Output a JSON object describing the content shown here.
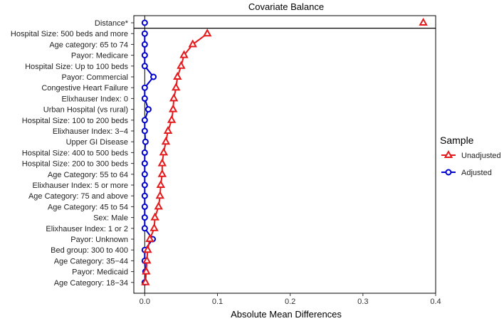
{
  "chart_data": {
    "type": "line",
    "title": "Covariate Balance",
    "xlabel": "Absolute Mean Differences",
    "ylabel": "",
    "xlim": [
      -0.015,
      0.4
    ],
    "xticks": [
      0.0,
      0.1,
      0.2,
      0.3,
      0.4
    ],
    "xtick_labels": [
      "0.0",
      "0.1",
      "0.2",
      "0.3",
      "0.4"
    ],
    "reference_line_x": 0,
    "grid": false,
    "legend_position": "right",
    "legend_title": "Sample",
    "categories": [
      "Distance*",
      "Hospital Size: 500 beds and more",
      "Age category: 65 to 74",
      "Payor: Medicare",
      "Hospital Size: Up to 100 beds",
      "Payor: Commercial",
      "Congestive Heart Failure",
      "Elixhauser Index: 0",
      "Urban Hospital (vs rural)",
      "Hospital Size: 100 to 200 beds",
      "Elixhauser Index: 3−4",
      "Upper GI Disease",
      "Hospital Size: 400 to 500 beds",
      "Hospital Size: 200 to 300 beds",
      "Age Category: 55 to 64",
      "Elixhauser Index: 5 or more",
      "Age Category: 75 and above",
      "Age Category: 45 to 54",
      "Sex: Male",
      "Elixhauser Index: 1 or 2",
      "Payor: Unknown",
      "Bed group: 300 to 400",
      "Age Category: 35−44",
      "Payor: Medicaid",
      "Age Category: 18−34"
    ],
    "series": [
      {
        "name": "Unadjusted",
        "color": "#e41a1c",
        "marker": "triangle",
        "values": [
          0.383,
          0.086,
          0.066,
          0.054,
          0.05,
          0.045,
          0.043,
          0.04,
          0.039,
          0.037,
          0.032,
          0.029,
          0.026,
          0.024,
          0.024,
          0.022,
          0.021,
          0.019,
          0.014,
          0.013,
          0.007,
          0.004,
          0.003,
          0.002,
          0.001
        ]
      },
      {
        "name": "Adjusted",
        "color": "#0000cc",
        "marker": "circle",
        "values": [
          0.0,
          0.0,
          0.0,
          0.0,
          0.0,
          0.012,
          0.0,
          0.0,
          0.005,
          0.0,
          0.0,
          0.001,
          0.0,
          0.0,
          0.0,
          0.0,
          0.0,
          0.0,
          0.0,
          0.0,
          0.011,
          0.0,
          0.0,
          0.001,
          0.0
        ]
      }
    ],
    "separator_after_category": "Distance*"
  }
}
